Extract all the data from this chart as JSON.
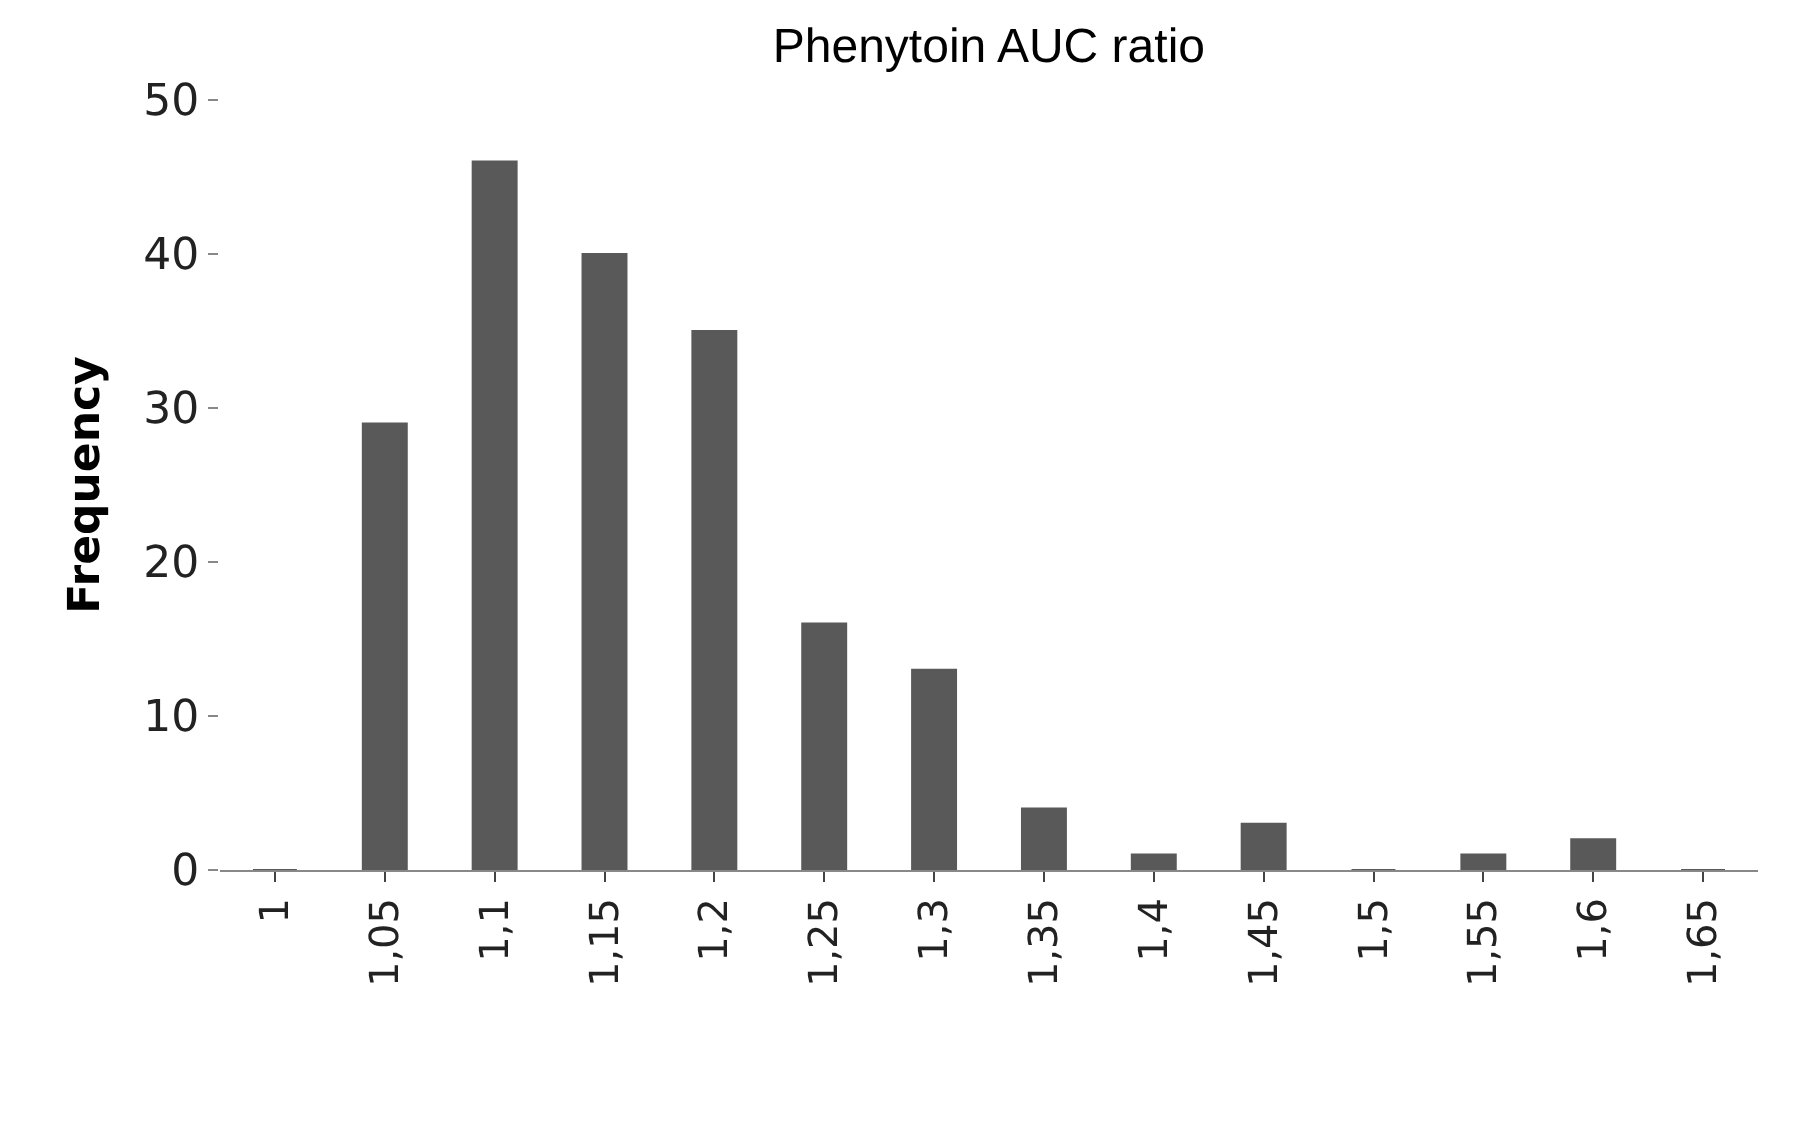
{
  "chart_data": {
    "type": "bar",
    "title": "Phenytoin AUC ratio",
    "ylabel": "Frequency",
    "categories": [
      "1",
      "1,05",
      "1,1",
      "1,15",
      "1,2",
      "1,25",
      "1,3",
      "1,35",
      "1,4",
      "1,45",
      "1,5",
      "1,55",
      "1,6",
      "1,65"
    ],
    "values": [
      0,
      29,
      46,
      40,
      35,
      16,
      13,
      4,
      1,
      3,
      0,
      1,
      2,
      0
    ],
    "color": "#595959",
    "ylim": [
      0,
      50
    ],
    "yticks": [
      0,
      10,
      20,
      30,
      40,
      50
    ]
  }
}
